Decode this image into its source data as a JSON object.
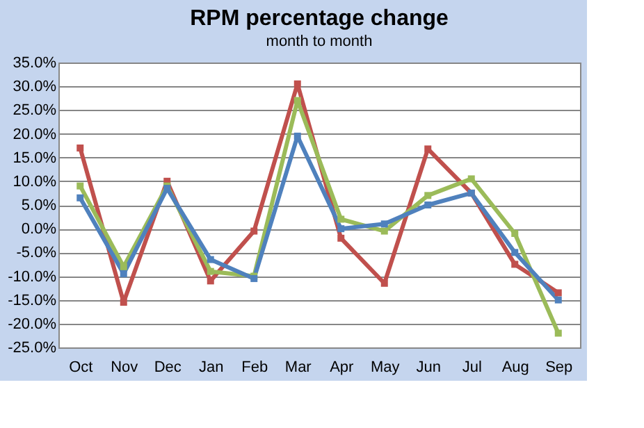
{
  "chart_data": {
    "type": "line",
    "title": "RPM percentage change",
    "subtitle": "month to month",
    "categories": [
      "Oct",
      "Nov",
      "Dec",
      "Jan",
      "Feb",
      "Mar",
      "Apr",
      "May",
      "Jun",
      "Jul",
      "Aug",
      "Sep"
    ],
    "series": [
      {
        "color": "#c0504d",
        "values": [
          17,
          -15.5,
          10,
          -11,
          -0.5,
          30.5,
          -2,
          -11.5,
          16.8,
          7.5,
          -7.5,
          -13.5
        ]
      },
      {
        "color": "#9bbb59",
        "values": [
          9,
          -8,
          9,
          -9,
          -10,
          27,
          2,
          -0.5,
          7,
          10.5,
          -1,
          -22
        ]
      },
      {
        "color": "#4f81bd",
        "values": [
          6.5,
          -9.5,
          8.5,
          -6.5,
          -10.5,
          19.5,
          0,
          1,
          5,
          7.5,
          -5,
          -15
        ]
      }
    ],
    "ylim": [
      -25,
      35
    ],
    "yticks": [
      {
        "value": -25,
        "label": "-25.0%"
      },
      {
        "value": -20,
        "label": "-20.0%"
      },
      {
        "value": -15,
        "label": "-15.0%"
      },
      {
        "value": -10,
        "label": "-10.0%"
      },
      {
        "value": -5,
        "label": "-5.0%"
      },
      {
        "value": 0,
        "label": "0.0%"
      },
      {
        "value": 5,
        "label": "5.0%"
      },
      {
        "value": 10,
        "label": "10.0%"
      },
      {
        "value": 15,
        "label": "15.0%"
      },
      {
        "value": 20,
        "label": "20.0%"
      },
      {
        "value": 25,
        "label": "25.0%"
      },
      {
        "value": 30,
        "label": "30.0%"
      },
      {
        "value": 35,
        "label": "35.0%"
      }
    ],
    "grid": "y",
    "legend": false,
    "marker": "square",
    "line_style": "solid"
  }
}
